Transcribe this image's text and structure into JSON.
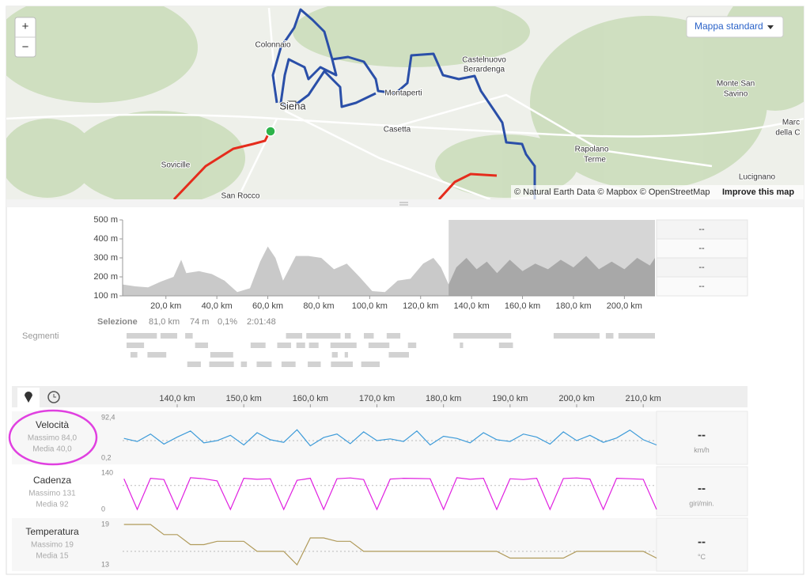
{
  "map": {
    "zoom_in": "+",
    "zoom_out": "−",
    "layer_button": "Mappa standard",
    "places": [
      "Colonnaio",
      "Siena",
      "Montaperti",
      "Castelnuovo",
      "Berardenga",
      "Casetta",
      "Sovicille",
      "San Rocco",
      "Rapolano",
      "Terme",
      "Monte San",
      "Savino",
      "Marc",
      "della C",
      "Lucignano"
    ],
    "attribution": "© Natural Earth Data © Mapbox © OpenStreetMap",
    "improve": "Improve this map"
  },
  "elevation_side": [
    "--",
    "--",
    "--",
    "--"
  ],
  "selection": {
    "label": "Selezione",
    "distance": "81,0 km",
    "elevation": "74 m",
    "grade": "0,1%",
    "time": "2:01:48"
  },
  "segments_label": "Segmenti",
  "stream_panels": [
    {
      "name": "Velocità",
      "max": "Massimo 84,0",
      "avg": "Media 40,0",
      "current": "--",
      "unit": "km/h"
    },
    {
      "name": "Cadenza",
      "max": "Massimo 131",
      "avg": "Media 92",
      "current": "--",
      "unit": "giri/min."
    },
    {
      "name": "Temperatura",
      "max": "Massimo 19",
      "avg": "Media 15",
      "current": "--",
      "unit": "°C"
    }
  ],
  "chart_data": [
    {
      "type": "area",
      "color": "#c9c9c9",
      "x": [
        3,
        8,
        13,
        18,
        23,
        26,
        28,
        33,
        38,
        43,
        48,
        53,
        57,
        60,
        63,
        66,
        71,
        76,
        81,
        86,
        91,
        96,
        101,
        106,
        111,
        116,
        121,
        125,
        128,
        131,
        134,
        138,
        142,
        146,
        150,
        155,
        160,
        165,
        170,
        175,
        180,
        185,
        190,
        195,
        200,
        205,
        210,
        212
      ],
      "values": [
        160,
        150,
        145,
        175,
        200,
        290,
        220,
        230,
        215,
        180,
        120,
        140,
        280,
        360,
        300,
        180,
        310,
        310,
        300,
        240,
        270,
        200,
        125,
        120,
        180,
        190,
        270,
        300,
        250,
        160,
        250,
        300,
        240,
        280,
        220,
        290,
        230,
        270,
        240,
        290,
        250,
        310,
        240,
        280,
        240,
        300,
        260,
        300
      ],
      "xlim": [
        3,
        212
      ],
      "ylim": [
        100,
        500
      ],
      "yticks": [
        {
          "value": 500,
          "label": "500 m"
        },
        {
          "value": 400,
          "label": "400 m"
        },
        {
          "value": 300,
          "label": "300 m"
        },
        {
          "value": 200,
          "label": "200 m"
        },
        {
          "value": 100,
          "label": "100 m"
        }
      ],
      "xticks": [
        {
          "value": 20,
          "label": "20,0 km"
        },
        {
          "value": 40,
          "label": "40,0 km"
        },
        {
          "value": 60,
          "label": "60,0 km"
        },
        {
          "value": 80,
          "label": "80,0 km"
        },
        {
          "value": 100,
          "label": "100,0 km"
        },
        {
          "value": 120,
          "label": "120,0 km"
        },
        {
          "value": 140,
          "label": "140,0 km"
        },
        {
          "value": 160,
          "label": "160,0 km"
        },
        {
          "value": 180,
          "label": "180,0 km"
        },
        {
          "value": 200,
          "label": "200,0 km"
        }
      ],
      "selection": [
        131,
        212
      ]
    },
    {
      "type": "line",
      "color": "#3d9bd9",
      "mean": 40,
      "x": [
        132,
        134,
        136,
        138,
        140,
        142,
        144,
        146,
        148,
        150,
        152,
        154,
        156,
        158,
        160,
        162,
        164,
        166,
        168,
        170,
        172,
        174,
        176,
        178,
        180,
        182,
        184,
        186,
        188,
        190,
        192,
        194,
        196,
        198,
        200,
        202,
        204,
        206,
        208,
        210,
        212
      ],
      "values": [
        45,
        38,
        55,
        32,
        48,
        62,
        35,
        40,
        52,
        30,
        58,
        42,
        36,
        65,
        28,
        47,
        55,
        33,
        60,
        40,
        44,
        38,
        62,
        30,
        50,
        45,
        35,
        58,
        42,
        38,
        55,
        48,
        32,
        60,
        40,
        52,
        36,
        46,
        64,
        42,
        30
      ],
      "xlim": [
        131.8,
        212
      ],
      "ylim": [
        0.2,
        92.4
      ],
      "yticks": [
        {
          "value": 92.4,
          "label": "92,4"
        },
        {
          "value": 0.2,
          "label": "0,2"
        }
      ],
      "xticks": [
        {
          "value": 140,
          "label": "140,0 km"
        },
        {
          "value": 150,
          "label": "150,0 km"
        },
        {
          "value": 160,
          "label": "160,0 km"
        },
        {
          "value": 170,
          "label": "170,0 km"
        },
        {
          "value": 180,
          "label": "180,0 km"
        },
        {
          "value": 190,
          "label": "190,0 km"
        },
        {
          "value": 200,
          "label": "200,0 km"
        },
        {
          "value": 210,
          "label": "210,0 km"
        }
      ]
    },
    {
      "type": "line",
      "color": "#e020e0",
      "mean": 92,
      "x": [
        132,
        134,
        136,
        138,
        140,
        142,
        144,
        146,
        148,
        150,
        152,
        154,
        156,
        158,
        160,
        162,
        164,
        166,
        168,
        170,
        172,
        174,
        176,
        178,
        180,
        182,
        184,
        186,
        188,
        190,
        192,
        194,
        196,
        198,
        200,
        202,
        204,
        206,
        208,
        210,
        212
      ],
      "values": [
        118,
        0,
        120,
        115,
        0,
        122,
        118,
        110,
        0,
        120,
        116,
        118,
        0,
        112,
        120,
        0,
        118,
        121,
        115,
        0,
        117,
        120,
        119,
        118,
        0,
        122,
        116,
        120,
        0,
        118,
        115,
        120,
        0,
        119,
        121,
        117,
        0,
        120,
        118,
        116,
        0
      ],
      "xlim": [
        131.8,
        212
      ],
      "ylim": [
        0,
        140
      ],
      "yticks": [
        140,
        0
      ]
    },
    {
      "type": "line",
      "color": "#b09a5a",
      "mean": 15,
      "x": [
        132,
        134,
        136,
        138,
        140,
        142,
        144,
        146,
        148,
        150,
        152,
        154,
        156,
        158,
        160,
        162,
        164,
        166,
        168,
        170,
        172,
        174,
        176,
        178,
        180,
        182,
        184,
        186,
        188,
        190,
        192,
        194,
        196,
        198,
        200,
        202,
        204,
        206,
        208,
        210,
        212
      ],
      "values": [
        19,
        19,
        19,
        17.5,
        17.5,
        16,
        16,
        16.5,
        16.5,
        16.5,
        15,
        15,
        15,
        13,
        17,
        17,
        16.5,
        16.5,
        15,
        15,
        15,
        15,
        15,
        15,
        15,
        15,
        15,
        15,
        15,
        14,
        14,
        14,
        14,
        14,
        15,
        15,
        15,
        15,
        15,
        15,
        14
      ],
      "xlim": [
        131.8,
        212
      ],
      "ylim": [
        13,
        19
      ],
      "yticks": [
        19,
        13
      ]
    }
  ]
}
